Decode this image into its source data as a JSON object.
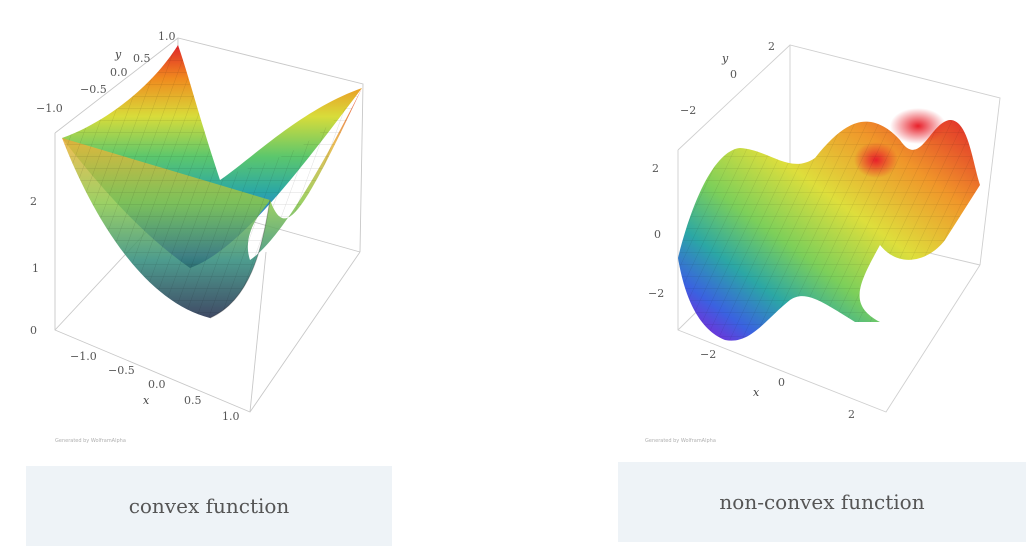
{
  "convex": {
    "caption": "convex function",
    "axis_x_label": "x",
    "axis_y_label": "y",
    "x_ticks": [
      "−1.0",
      "−0.5",
      "0.0",
      "0.5",
      "1.0"
    ],
    "y_ticks": [
      "1.0",
      "0.5",
      "0.0",
      "−0.5",
      "−1.0"
    ],
    "z_ticks": [
      "2",
      "1",
      "0"
    ],
    "credit": "Generated by WolframAlpha"
  },
  "nonconvex": {
    "caption": "non-convex function",
    "axis_x_label": "x",
    "axis_y_label": "y",
    "x_ticks": [
      "−2",
      "0",
      "2"
    ],
    "y_ticks": [
      "2",
      "0",
      "−2"
    ],
    "z_ticks": [
      "2",
      "0",
      "−2"
    ],
    "credit": "Generated by WolframAlpha"
  }
}
